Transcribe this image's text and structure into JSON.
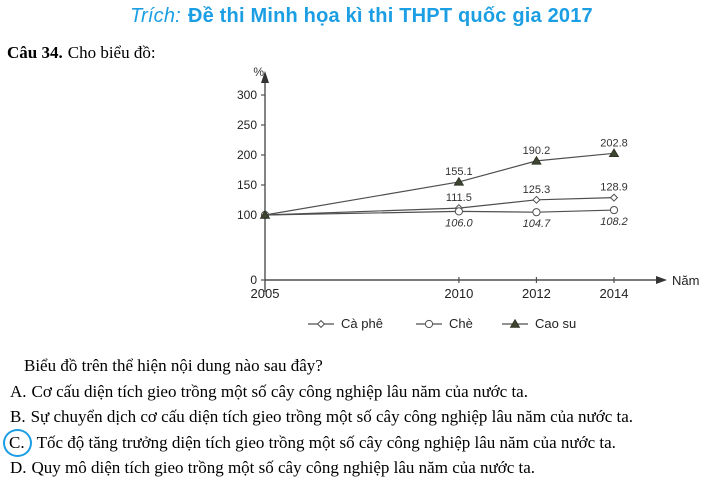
{
  "title": {
    "prefix": "Trích:",
    "main": "Đề thi Minh họa kì thi THPT quốc gia 2017"
  },
  "question": {
    "number": "Câu 34.",
    "intro": "Cho biểu đồ:",
    "prompt": "Biểu đồ trên thể hiện nội dung nào sau đây?",
    "options": [
      {
        "letter": "A.",
        "text": "Cơ cấu diện tích gieo trồng một số cây công nghiệp lâu năm của nước ta.",
        "circled": false
      },
      {
        "letter": "B.",
        "text": "Sự chuyển dịch cơ cấu diện tích gieo trồng một số cây công nghiệp lâu năm của nước ta.",
        "circled": false
      },
      {
        "letter": "C.",
        "text": "Tốc độ tăng trưởng diện tích gieo trồng một số cây công nghiệp lâu năm của nước ta.",
        "circled": true
      },
      {
        "letter": "D.",
        "text": "Quy mô diện tích gieo trồng một số cây công nghiệp lâu năm của nước ta.",
        "circled": false
      }
    ]
  },
  "colors": {
    "accent_blue": "#1b9ee3",
    "chart_line": "#4f4f4f",
    "triangle_fill": "#3e4531",
    "text_dark": "#222222"
  },
  "chart_data": {
    "type": "line",
    "title": "",
    "xlabel": "Năm",
    "ylabel": "%",
    "x": [
      2005,
      2010,
      2012,
      2014
    ],
    "yticks": [
      0,
      100,
      150,
      200,
      250,
      300
    ],
    "ylim": [
      0,
      320
    ],
    "grid": false,
    "legend_position": "bottom",
    "series": [
      {
        "name": "Cà phê",
        "marker": "diamond",
        "values": [
          100,
          111.5,
          125.3,
          128.9
        ],
        "label_side": "above",
        "label_italic": false
      },
      {
        "name": "Chè",
        "marker": "circle",
        "values": [
          100,
          106.0,
          104.7,
          108.2
        ],
        "label_side": "below",
        "label_italic": true
      },
      {
        "name": "Cao su",
        "marker": "triangle",
        "values": [
          100,
          155.1,
          190.2,
          202.8
        ],
        "label_side": "above",
        "label_italic": false
      }
    ]
  }
}
